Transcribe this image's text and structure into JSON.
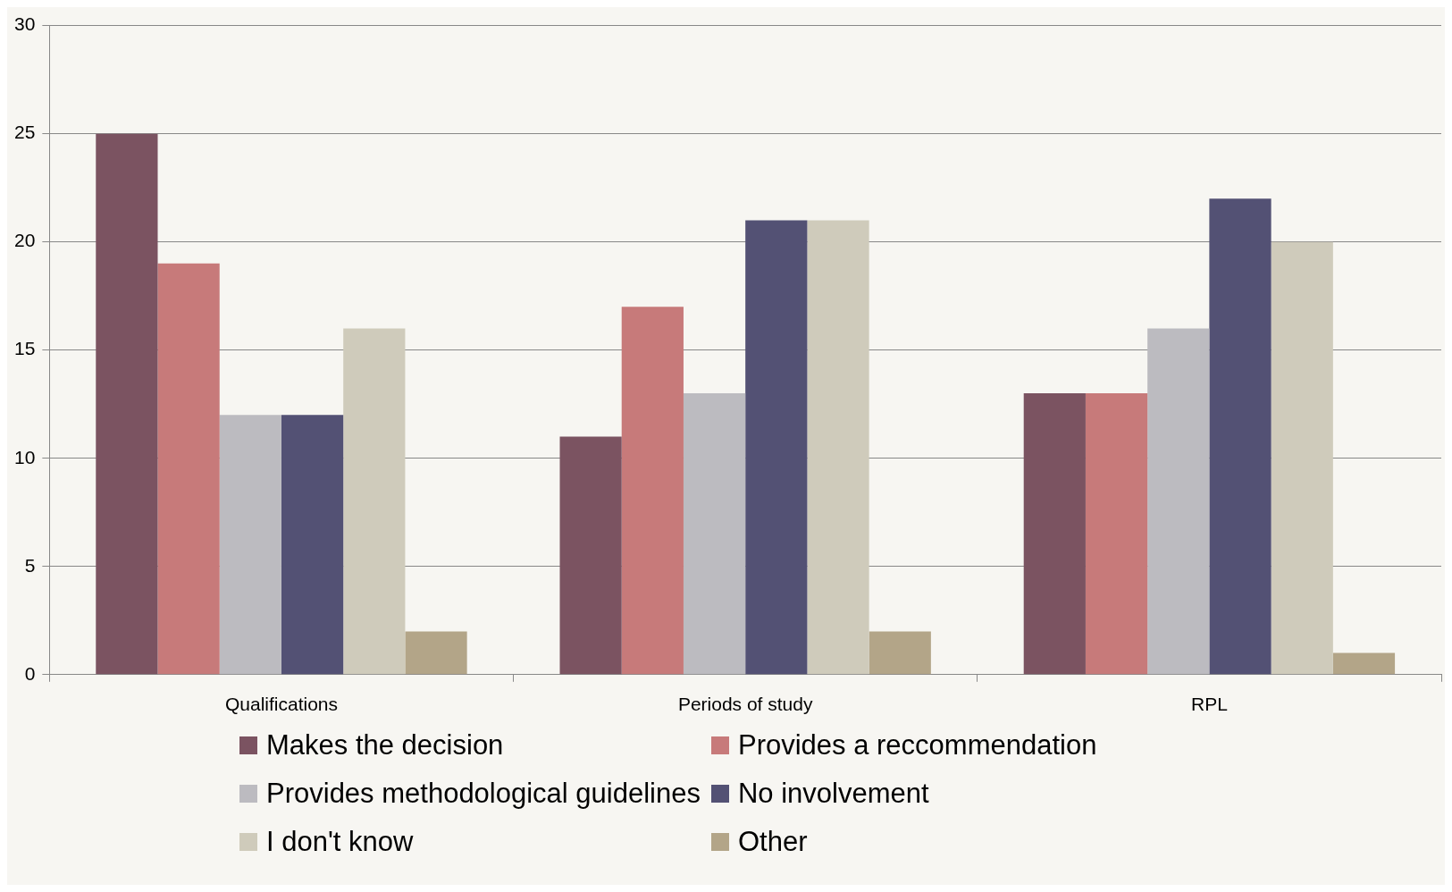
{
  "chart_data": {
    "type": "bar",
    "categories": [
      "Qualifications",
      "Periods of study",
      "RPL"
    ],
    "series": [
      {
        "name": "Makes the decision",
        "color": "#7b5361",
        "values": [
          25,
          11,
          13
        ]
      },
      {
        "name": "Provides a reccommendation",
        "color": "#c77a7a",
        "values": [
          19,
          17,
          13
        ]
      },
      {
        "name": "Provides methodological guidelines",
        "color": "#bcbbc0",
        "values": [
          12,
          13,
          16
        ]
      },
      {
        "name": "No involvement",
        "color": "#535174",
        "values": [
          12,
          21,
          22
        ]
      },
      {
        "name": "I don't know",
        "color": "#cfcbbb",
        "values": [
          16,
          21,
          20
        ]
      },
      {
        "name": "Other",
        "color": "#b3a588",
        "values": [
          2,
          2,
          1
        ]
      }
    ],
    "ylim": [
      0,
      30
    ],
    "yticks": [
      0,
      5,
      10,
      15,
      20,
      25,
      30
    ],
    "grid": "y",
    "legend": "bottom"
  }
}
